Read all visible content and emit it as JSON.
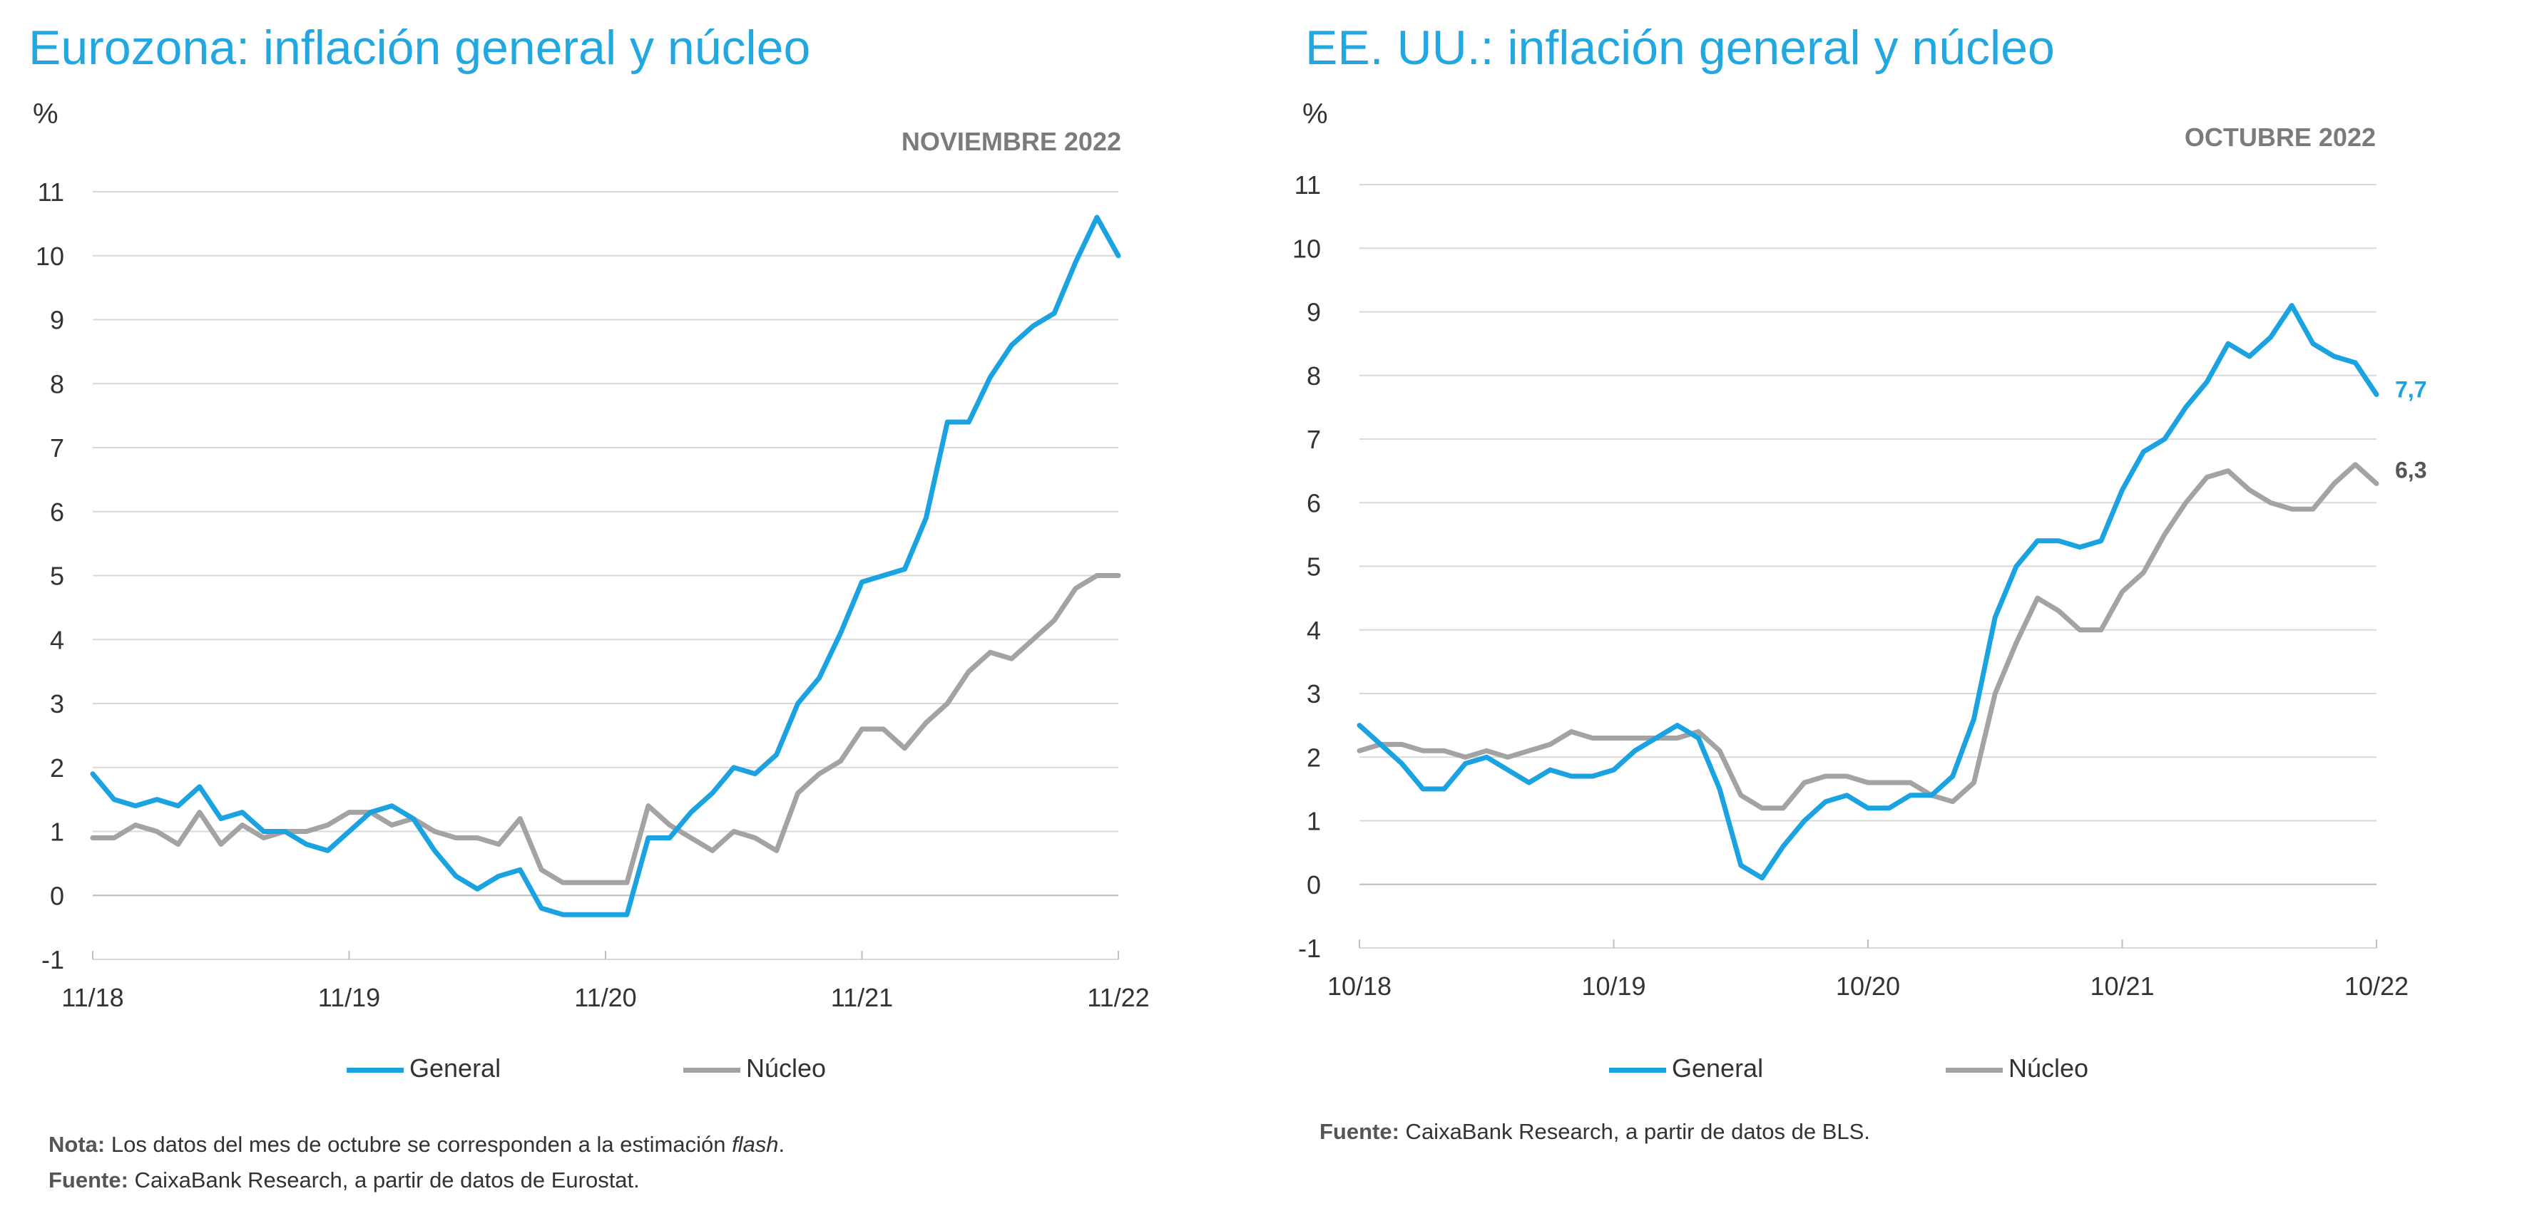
{
  "charts": [
    {
      "id": "eu",
      "title": "Eurozona: inflación general y núcleo",
      "unit": "%",
      "period": "NOVIEMBRE 2022",
      "legend": {
        "general": "General",
        "nucleo": "Núcleo"
      },
      "note": {
        "nota_label": "Nota:",
        "nota_text_before": " Los datos del mes de octubre se corresponden a la estimación ",
        "nota_text_italic": "flash",
        "nota_text_after": ".",
        "fuente_label": "Fuente:",
        "fuente_text": " CaixaBank Research, a partir de datos de Eurostat."
      }
    },
    {
      "id": "us",
      "title": "EE. UU.: inflación general y núcleo",
      "unit": "%",
      "period": "OCTUBRE 2022",
      "legend": {
        "general": "General",
        "nucleo": "Núcleo"
      },
      "end_labels": {
        "general": "7,7",
        "nucleo": "6,3"
      },
      "note": {
        "fuente_label": "Fuente:",
        "fuente_text": " CaixaBank Research, a partir de datos de BLS."
      }
    }
  ],
  "colors": {
    "general": "#1aa3e0",
    "nucleo": "#a3a3a3",
    "grid": "#d9d9d9",
    "title": "#22a7e0"
  },
  "chart_data": [
    {
      "type": "line",
      "title": "Eurozona: inflación general y núcleo",
      "ylabel": "%",
      "ylim": [
        -1,
        11
      ],
      "yticks": [
        -1,
        0,
        1,
        2,
        3,
        4,
        5,
        6,
        7,
        8,
        9,
        10,
        11
      ],
      "xticks": [
        "11/18",
        "11/19",
        "11/20",
        "11/21",
        "11/22"
      ],
      "grid": true,
      "legend": "bottom",
      "n_points": 49,
      "series": [
        {
          "name": "General",
          "key": "general",
          "values": [
            1.9,
            1.5,
            1.4,
            1.5,
            1.4,
            1.7,
            1.2,
            1.3,
            1.0,
            1.0,
            0.8,
            0.7,
            1.0,
            1.3,
            1.4,
            1.2,
            0.7,
            0.3,
            0.1,
            0.3,
            0.4,
            -0.2,
            -0.3,
            -0.3,
            -0.3,
            -0.3,
            0.9,
            0.9,
            1.3,
            1.6,
            2.0,
            1.9,
            2.2,
            3.0,
            3.4,
            4.1,
            4.9,
            5.0,
            5.1,
            5.9,
            7.4,
            7.4,
            8.1,
            8.6,
            8.9,
            9.1,
            9.9,
            10.6,
            10.0
          ]
        },
        {
          "name": "Núcleo",
          "key": "nucleo",
          "values": [
            0.9,
            0.9,
            1.1,
            1.0,
            0.8,
            1.3,
            0.8,
            1.1,
            0.9,
            1.0,
            1.0,
            1.1,
            1.3,
            1.3,
            1.1,
            1.2,
            1.0,
            0.9,
            0.9,
            0.8,
            1.2,
            0.4,
            0.2,
            0.2,
            0.2,
            0.2,
            1.4,
            1.1,
            0.9,
            0.7,
            1.0,
            0.9,
            0.7,
            1.6,
            1.9,
            2.1,
            2.6,
            2.6,
            2.3,
            2.7,
            3.0,
            3.5,
            3.8,
            3.7,
            4.0,
            4.3,
            4.8,
            5.0,
            5.0
          ]
        }
      ]
    },
    {
      "type": "line",
      "title": "EE. UU.: inflación general y núcleo",
      "ylabel": "%",
      "ylim": [
        -1,
        11
      ],
      "yticks": [
        -1,
        0,
        1,
        2,
        3,
        4,
        5,
        6,
        7,
        8,
        9,
        10,
        11
      ],
      "xticks": [
        "10/18",
        "10/19",
        "10/20",
        "10/21",
        "10/22"
      ],
      "grid": true,
      "legend": "bottom",
      "n_points": 49,
      "series": [
        {
          "name": "General",
          "key": "general",
          "values": [
            2.5,
            2.2,
            1.9,
            1.5,
            1.5,
            1.9,
            2.0,
            1.8,
            1.6,
            1.8,
            1.7,
            1.7,
            1.8,
            2.1,
            2.3,
            2.5,
            2.3,
            1.5,
            0.3,
            0.1,
            0.6,
            1.0,
            1.3,
            1.4,
            1.2,
            1.2,
            1.4,
            1.4,
            1.7,
            2.6,
            4.2,
            5.0,
            5.4,
            5.4,
            5.3,
            5.4,
            6.2,
            6.8,
            7.0,
            7.5,
            7.9,
            8.5,
            8.3,
            8.6,
            9.1,
            8.5,
            8.3,
            8.2,
            7.7
          ]
        },
        {
          "name": "Núcleo",
          "key": "nucleo",
          "values": [
            2.1,
            2.2,
            2.2,
            2.1,
            2.1,
            2.0,
            2.1,
            2.0,
            2.1,
            2.2,
            2.4,
            2.3,
            2.3,
            2.3,
            2.3,
            2.3,
            2.4,
            2.1,
            1.4,
            1.2,
            1.2,
            1.6,
            1.7,
            1.7,
            1.6,
            1.6,
            1.6,
            1.4,
            1.3,
            1.6,
            3.0,
            3.8,
            4.5,
            4.3,
            4.0,
            4.0,
            4.6,
            4.9,
            5.5,
            6.0,
            6.4,
            6.5,
            6.2,
            6.0,
            5.9,
            5.9,
            6.3,
            6.6,
            6.3
          ]
        }
      ]
    }
  ]
}
